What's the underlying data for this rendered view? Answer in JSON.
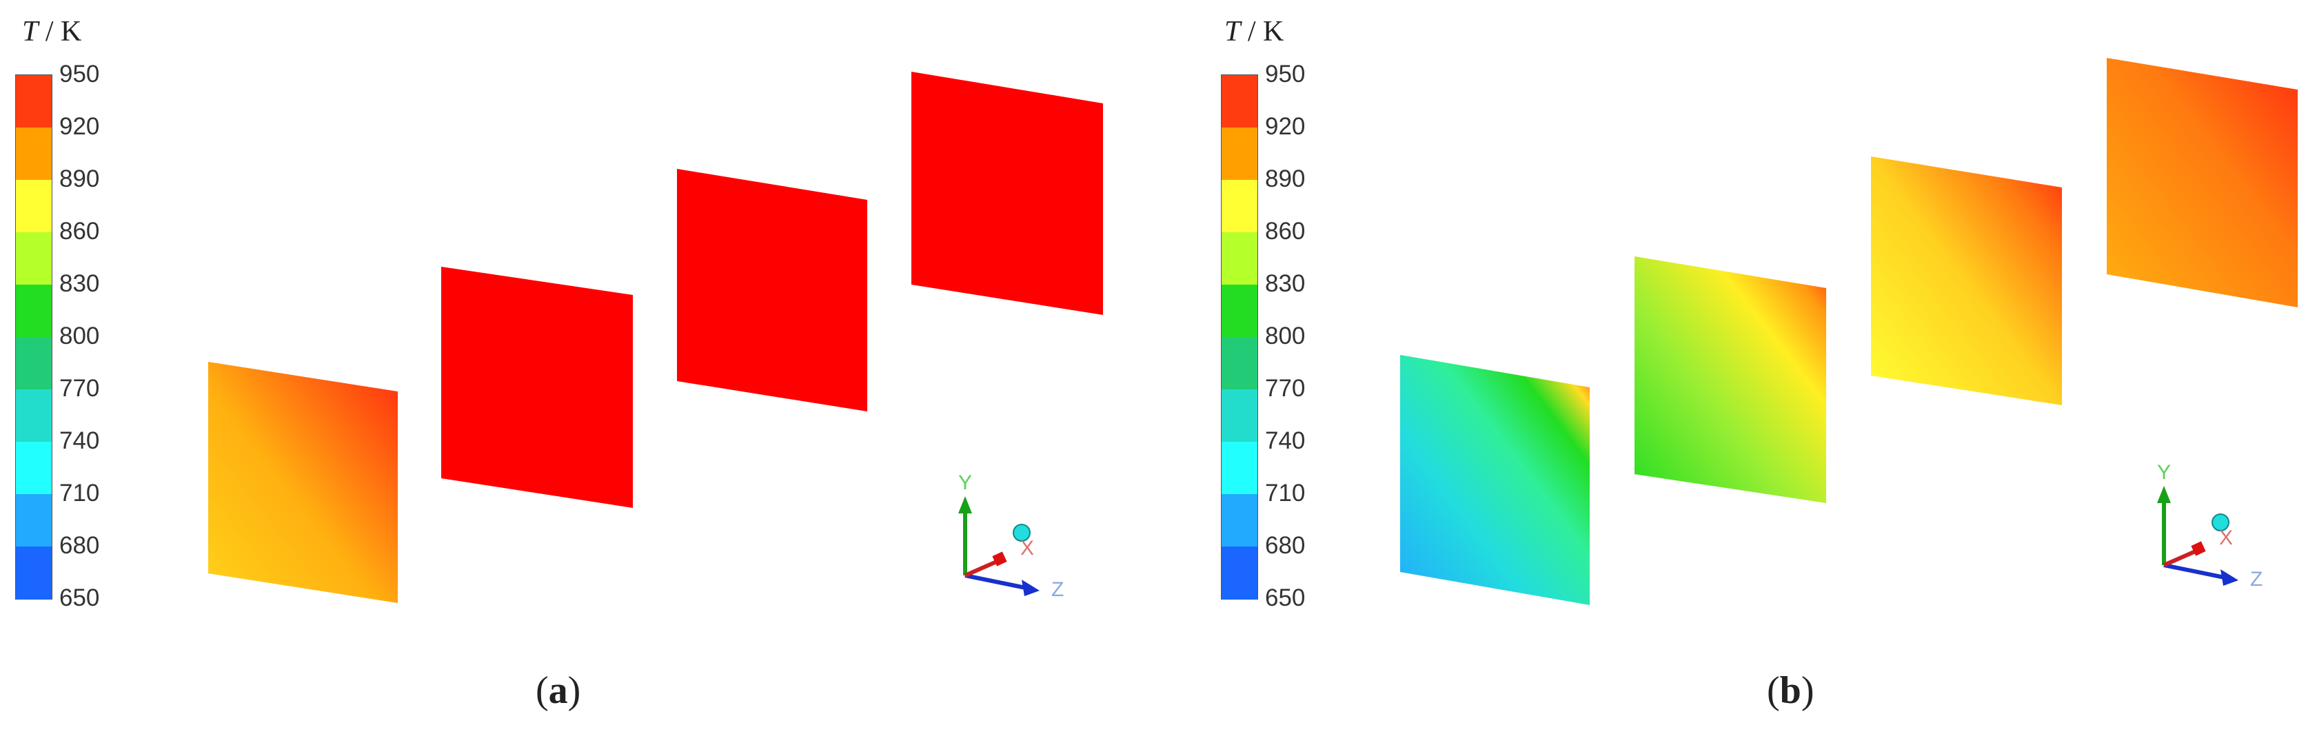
{
  "legend": {
    "symbol": "T",
    "separator": "/",
    "unit": "K",
    "ticks": [
      "950",
      "920",
      "890",
      "860",
      "830",
      "800",
      "770",
      "740",
      "710",
      "680",
      "650"
    ],
    "colors": [
      "#ff3b10",
      "#ffa000",
      "#ffff33",
      "#b5ff2a",
      "#22dd22",
      "#22cc77",
      "#22ddcc",
      "#22ffff",
      "#22aaff",
      "#1a66ff"
    ]
  },
  "panels": [
    {
      "caption_open": "(",
      "caption_letter": "a",
      "caption_close": ")"
    },
    {
      "caption_open": "(",
      "caption_letter": "b",
      "caption_close": ")"
    }
  ],
  "axes": {
    "y": "Y",
    "x": "X",
    "z": "Z"
  }
}
